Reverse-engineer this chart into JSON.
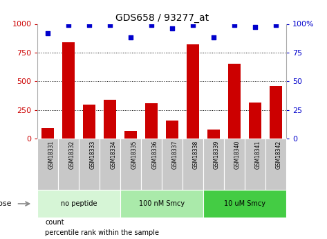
{
  "title": "GDS658 / 93277_at",
  "samples": [
    "GSM18331",
    "GSM18332",
    "GSM18333",
    "GSM18334",
    "GSM18335",
    "GSM18336",
    "GSM18337",
    "GSM18338",
    "GSM18339",
    "GSM18340",
    "GSM18341",
    "GSM18342"
  ],
  "counts": [
    90,
    840,
    295,
    340,
    70,
    310,
    155,
    820,
    80,
    650,
    315,
    460
  ],
  "percentiles": [
    92,
    99,
    99,
    99,
    88,
    99,
    96,
    99,
    88,
    99,
    97,
    99
  ],
  "bar_color": "#cc0000",
  "dot_color": "#0000cc",
  "ylim_left": [
    0,
    1000
  ],
  "ylim_right": [
    0,
    100
  ],
  "yticks_left": [
    0,
    250,
    500,
    750,
    1000
  ],
  "yticks_right": [
    0,
    25,
    50,
    75,
    100
  ],
  "groups": [
    {
      "label": "no peptide",
      "start": 0,
      "end": 4,
      "color": "#d6f5d6"
    },
    {
      "label": "100 nM Smcy",
      "start": 4,
      "end": 8,
      "color": "#aaeaaa"
    },
    {
      "label": "10 uM Smcy",
      "start": 8,
      "end": 12,
      "color": "#44cc44"
    }
  ],
  "dose_label": "dose",
  "legend_count": "count",
  "legend_percentile": "percentile rank within the sample",
  "tick_label_color": "#cc0000",
  "right_tick_color": "#0000cc",
  "grid_color": "black",
  "background_color": "#ffffff",
  "xticklabel_bg": "#c8c8c8"
}
